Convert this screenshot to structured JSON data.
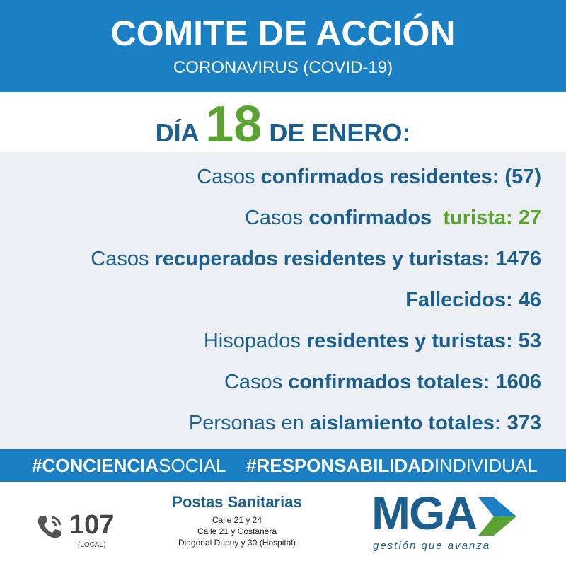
{
  "header": {
    "title": "COMITE DE ACCIÓN",
    "subtitle": "CORONAVIRUS (COVID-19)"
  },
  "date": {
    "prefix": "DÍA",
    "day": "18",
    "suffix": "DE ENERO:"
  },
  "stats": [
    {
      "parts": [
        {
          "text": "Casos ",
          "bold": false
        },
        {
          "text": "confirmados residentes: (57)",
          "bold": true
        }
      ]
    },
    {
      "parts": [
        {
          "text": "Casos ",
          "bold": false
        },
        {
          "text": "confirmados  ",
          "bold": true
        },
        {
          "text": "turista: 27",
          "bold": true,
          "color": "#5aa331"
        }
      ]
    },
    {
      "parts": [
        {
          "text": "Casos ",
          "bold": false
        },
        {
          "text": "recuperados residentes y turistas: 1476",
          "bold": true
        }
      ]
    },
    {
      "parts": [
        {
          "text": "Fallecidos: 46",
          "bold": true
        }
      ]
    },
    {
      "parts": [
        {
          "text": "Hisopados ",
          "bold": false
        },
        {
          "text": "residentes y turistas: 53",
          "bold": true
        }
      ]
    },
    {
      "parts": [
        {
          "text": "Casos ",
          "bold": false
        },
        {
          "text": "confirmados totales: 1606",
          "bold": true
        }
      ]
    },
    {
      "parts": [
        {
          "text": "Personas en ",
          "bold": false
        },
        {
          "text": "aislamiento totales: 373",
          "bold": true
        }
      ]
    }
  ],
  "hashtags": [
    {
      "parts": [
        {
          "text": "#CONCIENCIA",
          "bold": true
        },
        {
          "text": "SOCIAL",
          "bold": false
        }
      ]
    },
    {
      "parts": [
        {
          "text": "#RESPONSABILIDAD",
          "bold": true
        },
        {
          "text": "INDIVIDUAL",
          "bold": false
        }
      ]
    }
  ],
  "footer": {
    "phone": "107",
    "phone_note": "(LOCAL)",
    "postas": {
      "title": "Postas Sanitarias",
      "lines": [
        "Calle 21 y 24",
        "Calle 21 y Costanera",
        "Diagonal Dupuy y 30 (Hospital)"
      ]
    },
    "logo": {
      "name": "MGA",
      "tagline": "gestión que avanza"
    }
  }
}
